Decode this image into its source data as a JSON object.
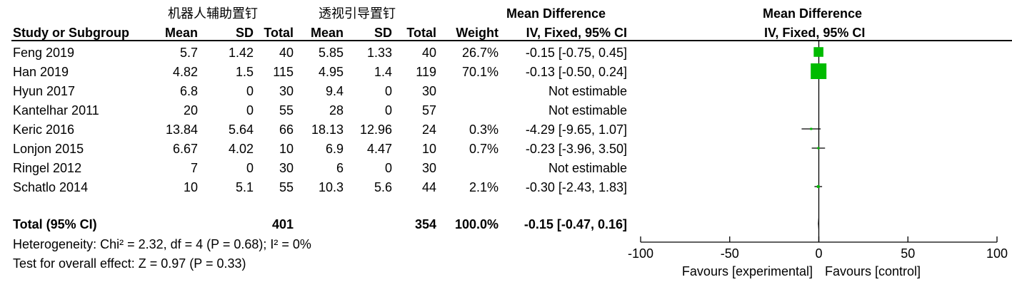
{
  "headers": {
    "group1": "机器人辅助置钉",
    "group2": "透视引导置钉",
    "md_title": "Mean Difference",
    "study": "Study or Subgroup",
    "mean": "Mean",
    "sd": "SD",
    "total": "Total",
    "weight": "Weight",
    "ci": "IV, Fixed, 95% CI",
    "plot_title": "Mean Difference",
    "plot_ci": "IV, Fixed, 95% CI"
  },
  "rows": [
    {
      "study": "Feng 2019",
      "m1": "5.7",
      "sd1": "1.42",
      "n1": "40",
      "m2": "5.85",
      "sd2": "1.33",
      "n2": "40",
      "weight": "26.7%",
      "ci": "-0.15 [-0.75, 0.45]"
    },
    {
      "study": "Han 2019",
      "m1": "4.82",
      "sd1": "1.5",
      "n1": "115",
      "m2": "4.95",
      "sd2": "1.4",
      "n2": "119",
      "weight": "70.1%",
      "ci": "-0.13 [-0.50, 0.24]"
    },
    {
      "study": "Hyun 2017",
      "m1": "6.8",
      "sd1": "0",
      "n1": "30",
      "m2": "9.4",
      "sd2": "0",
      "n2": "30",
      "weight": "",
      "ci": "Not estimable"
    },
    {
      "study": "Kantelhar 2011",
      "m1": "20",
      "sd1": "0",
      "n1": "55",
      "m2": "28",
      "sd2": "0",
      "n2": "57",
      "weight": "",
      "ci": "Not estimable"
    },
    {
      "study": "Keric 2016",
      "m1": "13.84",
      "sd1": "5.64",
      "n1": "66",
      "m2": "18.13",
      "sd2": "12.96",
      "n2": "24",
      "weight": "0.3%",
      "ci": "-4.29 [-9.65, 1.07]"
    },
    {
      "study": "Lonjon 2015",
      "m1": "6.67",
      "sd1": "4.02",
      "n1": "10",
      "m2": "6.9",
      "sd2": "4.47",
      "n2": "10",
      "weight": "0.7%",
      "ci": "-0.23 [-3.96, 3.50]"
    },
    {
      "study": "Ringel 2012",
      "m1": "7",
      "sd1": "0",
      "n1": "30",
      "m2": "6",
      "sd2": "0",
      "n2": "30",
      "weight": "",
      "ci": "Not estimable"
    },
    {
      "study": "Schatlo 2014",
      "m1": "10",
      "sd1": "5.1",
      "n1": "55",
      "m2": "10.3",
      "sd2": "5.6",
      "n2": "44",
      "weight": "2.1%",
      "ci": "-0.30 [-2.43, 1.83]"
    }
  ],
  "total": {
    "label": "Total (95% CI)",
    "n1": "401",
    "n2": "354",
    "weight": "100.0%",
    "ci": "-0.15 [-0.47, 0.16]"
  },
  "heterogeneity": "Heterogeneity: Chi² = 2.32, df = 4 (P = 0.68); I² = 0%",
  "overall_effect": "Test for overall effect: Z = 0.97 (P = 0.33)",
  "axis_labels": {
    "left": "Favours [experimental]",
    "right": "Favours [control]"
  },
  "colors": {
    "marker": "#00bb00",
    "text": "#000000"
  },
  "chart_data": {
    "type": "forest",
    "xlim": [
      -100,
      100
    ],
    "xticks": [
      -100,
      -50,
      0,
      50,
      100
    ],
    "xtick_labels": [
      "-100",
      "-50",
      "0",
      "50",
      "100"
    ],
    "studies": [
      {
        "name": "Feng 2019",
        "md": -0.15,
        "lo": -0.75,
        "hi": 0.45,
        "weight": 26.7
      },
      {
        "name": "Han 2019",
        "md": -0.13,
        "lo": -0.5,
        "hi": 0.24,
        "weight": 70.1
      },
      {
        "name": "Hyun 2017",
        "md": null,
        "lo": null,
        "hi": null,
        "weight": null
      },
      {
        "name": "Kantelhar 2011",
        "md": null,
        "lo": null,
        "hi": null,
        "weight": null
      },
      {
        "name": "Keric 2016",
        "md": -4.29,
        "lo": -9.65,
        "hi": 1.07,
        "weight": 0.3
      },
      {
        "name": "Lonjon 2015",
        "md": -0.23,
        "lo": -3.96,
        "hi": 3.5,
        "weight": 0.7
      },
      {
        "name": "Ringel 2012",
        "md": null,
        "lo": null,
        "hi": null,
        "weight": null
      },
      {
        "name": "Schatlo 2014",
        "md": -0.3,
        "lo": -2.43,
        "hi": 1.83,
        "weight": 2.1
      }
    ],
    "pooled": {
      "md": -0.15,
      "lo": -0.47,
      "hi": 0.16
    }
  }
}
